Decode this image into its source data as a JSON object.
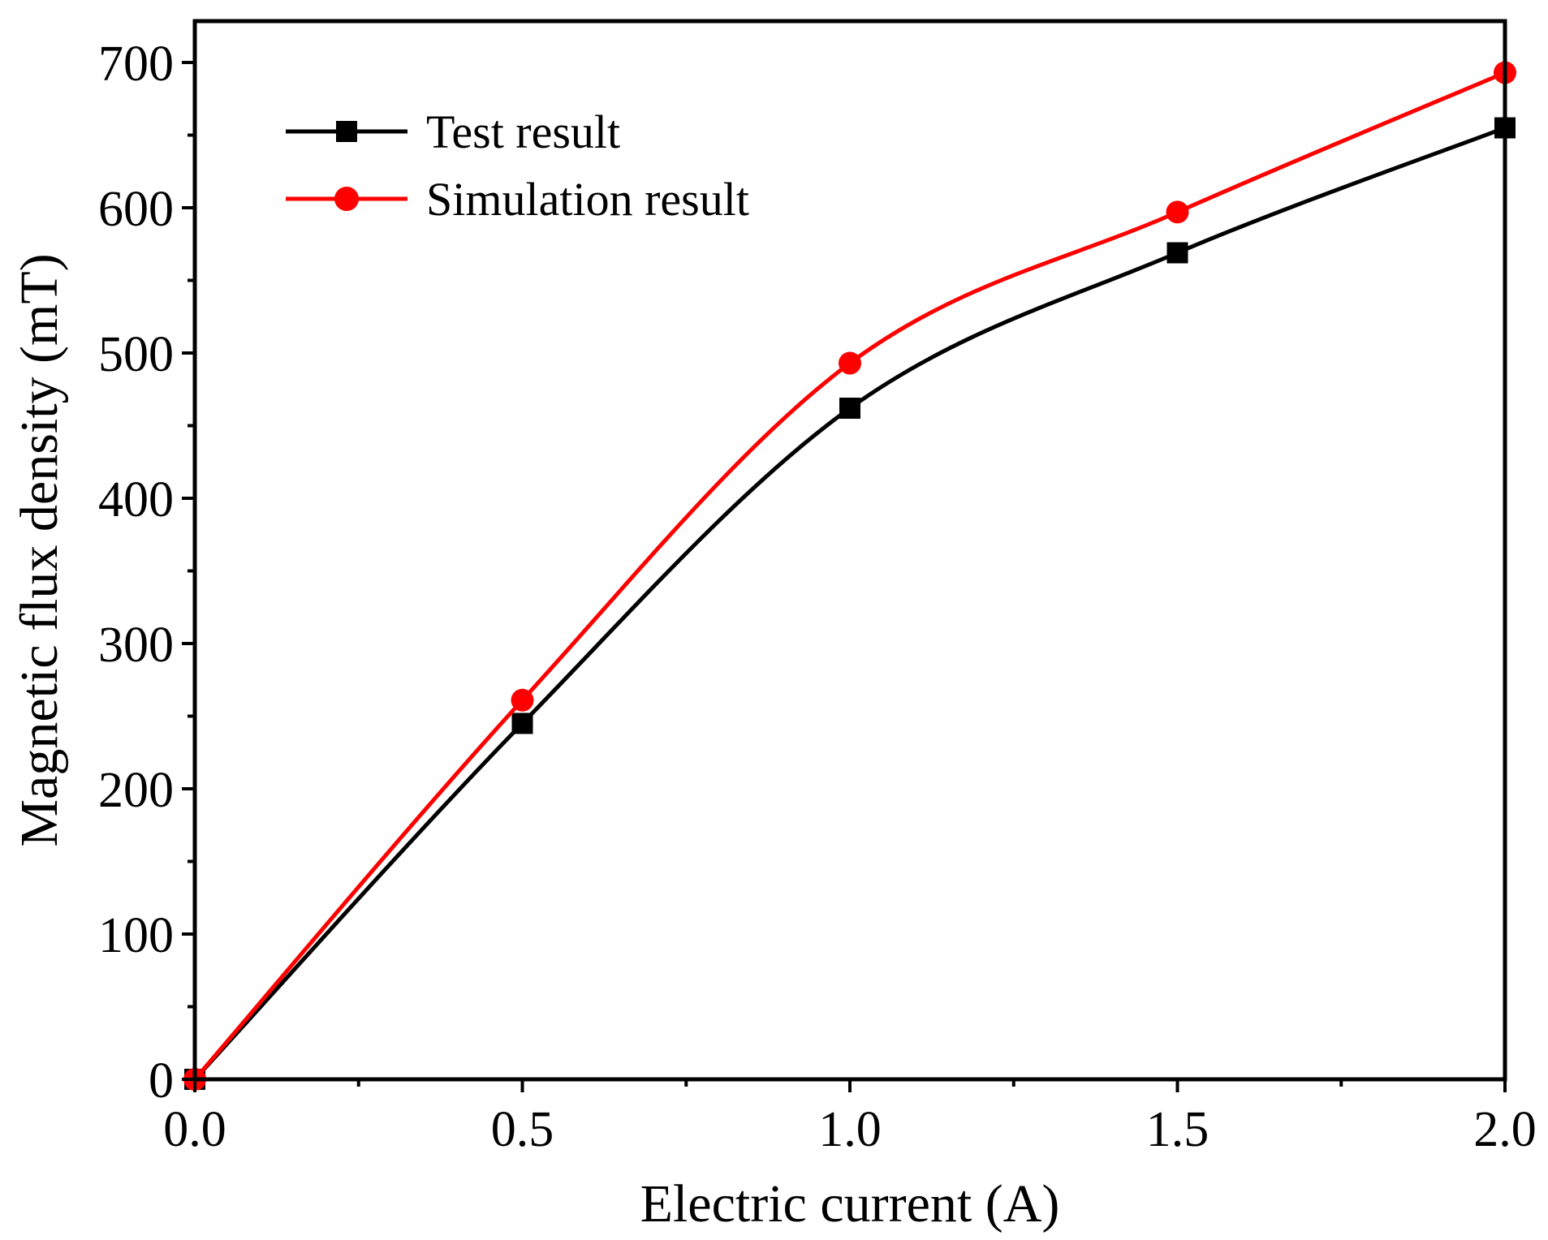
{
  "chart_data": {
    "type": "line",
    "title": "",
    "xlabel": "Electric current (A)",
    "ylabel": "Magnetic flux density (mT)",
    "xlim": [
      0,
      2.0
    ],
    "ylim": [
      0,
      700
    ],
    "xticks": [
      0.0,
      0.5,
      1.0,
      1.5,
      2.0
    ],
    "xtick_labels": [
      "0.0",
      "0.5",
      "1.0",
      "1.5",
      "2.0"
    ],
    "yticks": [
      0,
      100,
      200,
      300,
      400,
      500,
      600,
      700
    ],
    "ytick_labels": [
      "0",
      "100",
      "200",
      "300",
      "400",
      "500",
      "600",
      "700"
    ],
    "x_minor_ticks": [
      0.25,
      0.75,
      1.25,
      1.75
    ],
    "y_minor_ticks": [
      50,
      150,
      250,
      350,
      450,
      550,
      650
    ],
    "grid": false,
    "legend_position": "top-left",
    "series": [
      {
        "name": "Test result",
        "marker": "square",
        "color": "#000000",
        "x": [
          0,
          0.5,
          1.0,
          1.5,
          2.0
        ],
        "y": [
          0,
          245,
          462,
          569,
          655
        ]
      },
      {
        "name": "Simulation result",
        "marker": "circle",
        "color": "#ff0000",
        "x": [
          0,
          0.5,
          1.0,
          1.5,
          2.0
        ],
        "y": [
          0,
          261,
          493,
          597,
          693
        ]
      }
    ]
  }
}
